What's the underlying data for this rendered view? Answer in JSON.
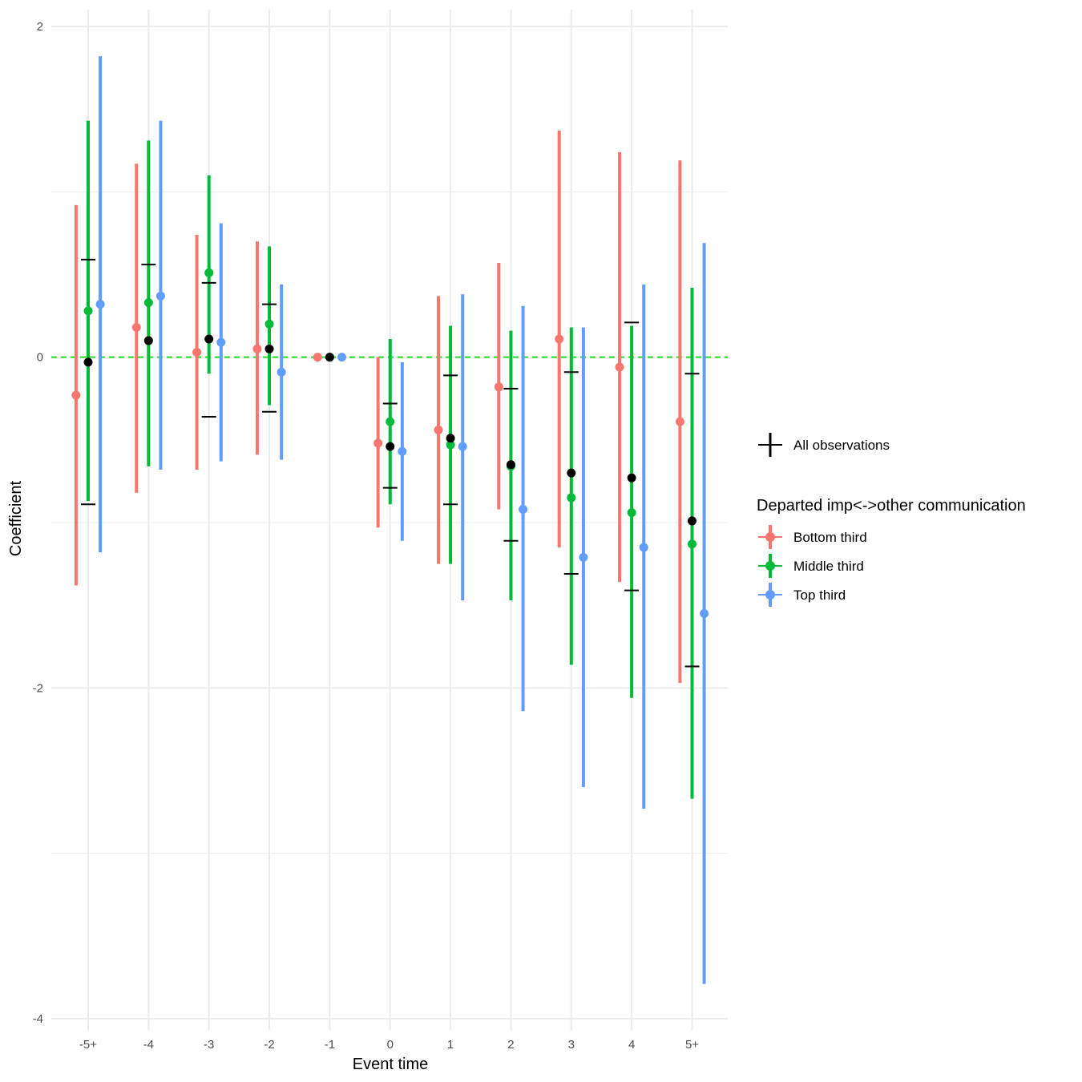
{
  "chart_data": {
    "type": "scatter",
    "subtype": "coefficient plot with confidence intervals",
    "xlabel": "Event time",
    "ylabel": "Coefficient",
    "categories": [
      "-5+",
      "-4",
      "-3",
      "-2",
      "-1",
      "0",
      "1",
      "2",
      "3",
      "4",
      "5+"
    ],
    "ylim": [
      -4,
      2
    ],
    "yticks": [
      -4,
      -2,
      0,
      2
    ],
    "grid": true,
    "reference_line": {
      "y": 0,
      "style": "dashed",
      "color": "#22dd22"
    },
    "legend": {
      "placement": "right",
      "overall_label": "All observations",
      "title": "Departed imp<->other communication"
    },
    "overall": {
      "name": "All observations",
      "color": "#000000",
      "estimate": [
        -0.03,
        0.1,
        0.11,
        0.05,
        0.0,
        -0.54,
        -0.49,
        -0.65,
        -0.7,
        -0.73,
        -0.99
      ],
      "lower": [
        -0.89,
        null,
        -0.36,
        -0.33,
        null,
        -0.79,
        -0.89,
        -1.11,
        -1.31,
        -1.41,
        -1.87
      ],
      "upper": [
        0.59,
        0.56,
        0.45,
        0.32,
        null,
        -0.28,
        -0.11,
        -0.19,
        -0.09,
        0.21,
        -0.1
      ]
    },
    "series": [
      {
        "name": "Bottom third",
        "color": "#F8766D",
        "estimate": [
          -0.23,
          0.18,
          0.03,
          0.05,
          0.0,
          -0.52,
          -0.44,
          -0.18,
          0.11,
          -0.06,
          -0.39
        ],
        "lower": [
          -1.38,
          -0.82,
          -0.68,
          -0.59,
          null,
          -1.03,
          -1.25,
          -0.92,
          -1.15,
          -1.36,
          -1.97
        ],
        "upper": [
          0.92,
          1.17,
          0.74,
          0.7,
          null,
          0.0,
          0.37,
          0.57,
          1.37,
          1.24,
          1.19
        ]
      },
      {
        "name": "Middle third",
        "color": "#00BA38",
        "estimate": [
          0.28,
          0.33,
          0.51,
          0.2,
          0.0,
          -0.39,
          -0.53,
          -0.66,
          -0.85,
          -0.94,
          -1.13
        ],
        "lower": [
          -0.87,
          -0.66,
          -0.1,
          -0.29,
          null,
          -0.89,
          -1.25,
          -1.47,
          -1.86,
          -2.06,
          -2.67
        ],
        "upper": [
          1.43,
          1.31,
          1.1,
          0.67,
          null,
          0.11,
          0.19,
          0.16,
          0.18,
          0.19,
          0.42
        ]
      },
      {
        "name": "Top third",
        "color": "#619CFF",
        "estimate": [
          0.32,
          0.37,
          0.09,
          -0.09,
          0.0,
          -0.57,
          -0.54,
          -0.92,
          -1.21,
          -1.15,
          -1.55
        ],
        "lower": [
          -1.18,
          -0.68,
          -0.63,
          -0.62,
          null,
          -1.11,
          -1.47,
          -2.14,
          -2.6,
          -2.73,
          -3.79
        ],
        "upper": [
          1.82,
          1.43,
          0.81,
          0.44,
          null,
          -0.03,
          0.38,
          0.31,
          0.18,
          0.44,
          0.69
        ]
      }
    ]
  }
}
